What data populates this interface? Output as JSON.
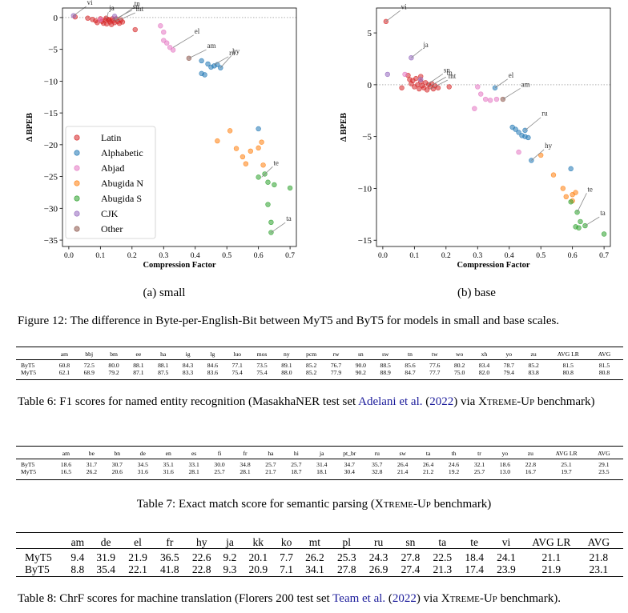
{
  "figure": {
    "legend": [
      {
        "label": "Latin",
        "color": "#d62728"
      },
      {
        "label": "Alphabetic",
        "color": "#1f77b4"
      },
      {
        "label": "Abjad",
        "color": "#e377c2"
      },
      {
        "label": "Abugida N",
        "color": "#ff7f0e"
      },
      {
        "label": "Abugida S",
        "color": "#2ca02c"
      },
      {
        "label": "CJK",
        "color": "#9467bd"
      },
      {
        "label": "Other",
        "color": "#8c564b"
      }
    ],
    "subcaption_a": "(a) small",
    "subcaption_b": "(b) base",
    "caption": "Figure 12: The difference in Byte-per-English-Bit between MyT5 and ByT5 for models in small and base scales."
  },
  "chart_data": [
    {
      "type": "scatter",
      "title": "(a) small",
      "xlabel": "Compression Factor",
      "ylabel": "Δ BPEB",
      "xlim": [
        -0.02,
        0.72
      ],
      "ylim": [
        -36,
        1.5
      ],
      "xticks": [
        "0.0",
        "0.1",
        "0.2",
        "0.3",
        "0.4",
        "0.5",
        "0.6",
        "0.7"
      ],
      "yticks": [
        "0",
        "−5",
        "−10",
        "−15",
        "−20",
        "−25",
        "−30",
        "−35"
      ],
      "xtick_values": [
        0,
        0.1,
        0.2,
        0.3,
        0.4,
        0.5,
        0.6,
        0.7
      ],
      "ytick_values": [
        0,
        -5,
        -10,
        -15,
        -20,
        -25,
        -30,
        -35
      ],
      "series": [
        {
          "name": "Latin",
          "points": [
            [
              0.02,
              0.1
            ],
            [
              0.06,
              -0.1
            ],
            [
              0.075,
              -0.3
            ],
            [
              0.085,
              -0.5
            ],
            [
              0.09,
              -0.8
            ],
            [
              0.1,
              -0.2
            ],
            [
              0.105,
              -0.6
            ],
            [
              0.11,
              -0.9
            ],
            [
              0.115,
              -0.4
            ],
            [
              0.12,
              -1.0
            ],
            [
              0.125,
              -0.3
            ],
            [
              0.13,
              -0.7
            ],
            [
              0.135,
              -1.1
            ],
            [
              0.14,
              -0.5
            ],
            [
              0.145,
              -0.8
            ],
            [
              0.15,
              -0.2
            ],
            [
              0.155,
              -0.6
            ],
            [
              0.16,
              -0.9
            ],
            [
              0.165,
              -0.4
            ],
            [
              0.17,
              -0.7
            ],
            [
              0.21,
              -1.9
            ],
            [
              0.118,
              -0.1
            ],
            [
              0.128,
              -0.4
            ],
            [
              0.138,
              -0.2
            ]
          ]
        },
        {
          "name": "Alphabetic",
          "points": [
            [
              0.42,
              -6.8
            ],
            [
              0.44,
              -7.3
            ],
            [
              0.45,
              -7.8
            ],
            [
              0.46,
              -7.6
            ],
            [
              0.47,
              -7.4
            ],
            [
              0.48,
              -7.9
            ],
            [
              0.42,
              -8.8
            ],
            [
              0.43,
              -9.0
            ],
            [
              0.6,
              -17.5
            ]
          ]
        },
        {
          "name": "Abjad",
          "points": [
            [
              0.29,
              -1.3
            ],
            [
              0.3,
              -2.3
            ],
            [
              0.3,
              -3.6
            ],
            [
              0.31,
              -4.0
            ],
            [
              0.32,
              -4.7
            ],
            [
              0.33,
              -5.1
            ],
            [
              0.1,
              -0.3
            ]
          ]
        },
        {
          "name": "Abugida N",
          "points": [
            [
              0.47,
              -19.4
            ],
            [
              0.51,
              -17.8
            ],
            [
              0.53,
              -20.6
            ],
            [
              0.55,
              -21.9
            ],
            [
              0.56,
              -23.0
            ],
            [
              0.575,
              -21.0
            ],
            [
              0.6,
              -20.5
            ],
            [
              0.61,
              -19.6
            ],
            [
              0.615,
              -23.2
            ]
          ]
        },
        {
          "name": "Abugida S",
          "points": [
            [
              0.6,
              -25.1
            ],
            [
              0.62,
              -24.6
            ],
            [
              0.63,
              -25.9
            ],
            [
              0.65,
              -26.3
            ],
            [
              0.7,
              -26.8
            ],
            [
              0.63,
              -29.4
            ],
            [
              0.64,
              -32.2
            ],
            [
              0.64,
              -33.8
            ]
          ]
        },
        {
          "name": "CJK",
          "points": [
            [
              0.015,
              0.3
            ],
            [
              0.145,
              0.2
            ]
          ]
        },
        {
          "name": "Other",
          "points": [
            [
              0.38,
              -6.4
            ]
          ]
        }
      ],
      "annotations": [
        {
          "text": "vi",
          "x": 0.015,
          "y": 0.3,
          "tx": 0.055,
          "ty": 2.0
        },
        {
          "text": "ja",
          "x": 0.12,
          "y": -0.2,
          "tx": 0.125,
          "ty": 1.1
        },
        {
          "text": "sn",
          "x": 0.14,
          "y": -0.4,
          "tx": 0.2,
          "ty": 1.4
        },
        {
          "text": "tn",
          "x": 0.145,
          "y": -0.5,
          "tx": 0.205,
          "ty": 1.8
        },
        {
          "text": "mt",
          "x": 0.15,
          "y": -0.6,
          "tx": 0.21,
          "ty": 1.0
        },
        {
          "text": "el",
          "x": 0.33,
          "y": -4.7,
          "tx": 0.395,
          "ty": -2.5
        },
        {
          "text": "am",
          "x": 0.38,
          "y": -6.4,
          "tx": 0.435,
          "ty": -4.8
        },
        {
          "text": "ru",
          "x": 0.46,
          "y": -7.4,
          "tx": 0.505,
          "ty": -5.9
        },
        {
          "text": "hy",
          "x": 0.48,
          "y": -7.9,
          "tx": 0.515,
          "ty": -5.7
        },
        {
          "text": "te",
          "x": 0.61,
          "y": -25.1,
          "tx": 0.645,
          "ty": -23.2
        },
        {
          "text": "ta",
          "x": 0.64,
          "y": -33.8,
          "tx": 0.685,
          "ty": -32.0
        }
      ]
    },
    {
      "type": "scatter",
      "title": "(b) base",
      "xlabel": "Compression Factor",
      "ylabel": "Δ BPEB",
      "xlim": [
        -0.02,
        0.72
      ],
      "ylim": [
        -15.6,
        7.4
      ],
      "xticks": [
        "0.0",
        "0.1",
        "0.2",
        "0.3",
        "0.4",
        "0.5",
        "0.6",
        "0.7"
      ],
      "yticks": [
        "5",
        "0",
        "−5",
        "−10",
        "−15"
      ],
      "xtick_values": [
        0,
        0.1,
        0.2,
        0.3,
        0.4,
        0.5,
        0.6,
        0.7
      ],
      "ytick_values": [
        5,
        0,
        -5,
        -10,
        -15
      ],
      "series": [
        {
          "name": "Latin",
          "points": [
            [
              0.01,
              6.1
            ],
            [
              0.06,
              -0.3
            ],
            [
              0.08,
              0.9
            ],
            [
              0.085,
              0.5
            ],
            [
              0.09,
              0.1
            ],
            [
              0.1,
              -0.2
            ],
            [
              0.105,
              0.6
            ],
            [
              0.11,
              0.0
            ],
            [
              0.115,
              -0.4
            ],
            [
              0.12,
              0.3
            ],
            [
              0.125,
              -0.1
            ],
            [
              0.13,
              -0.3
            ],
            [
              0.135,
              0.2
            ],
            [
              0.14,
              -0.5
            ],
            [
              0.145,
              0.0
            ],
            [
              0.15,
              -0.2
            ],
            [
              0.16,
              -0.4
            ],
            [
              0.165,
              -0.1
            ],
            [
              0.175,
              -0.3
            ],
            [
              0.21,
              -0.2
            ],
            [
              0.12,
              0.8
            ],
            [
              0.095,
              0.4
            ],
            [
              0.155,
              0.1
            ]
          ]
        },
        {
          "name": "Alphabetic",
          "points": [
            [
              0.41,
              -4.1
            ],
            [
              0.42,
              -4.3
            ],
            [
              0.43,
              -4.6
            ],
            [
              0.44,
              -4.9
            ],
            [
              0.45,
              -4.4
            ],
            [
              0.45,
              -5.0
            ],
            [
              0.46,
              -5.1
            ],
            [
              0.595,
              -8.1
            ],
            [
              0.47,
              -7.3
            ],
            [
              0.355,
              -0.3
            ]
          ]
        },
        {
          "name": "Abjad",
          "points": [
            [
              0.3,
              -0.2
            ],
            [
              0.31,
              -0.9
            ],
            [
              0.325,
              -1.4
            ],
            [
              0.34,
              -1.5
            ],
            [
              0.36,
              -1.4
            ],
            [
              0.43,
              -6.5
            ],
            [
              0.29,
              -2.3
            ],
            [
              0.07,
              1.0
            ]
          ]
        },
        {
          "name": "Abugida N",
          "points": [
            [
              0.54,
              -8.7
            ],
            [
              0.57,
              -10.0
            ],
            [
              0.58,
              -10.8
            ],
            [
              0.6,
              -10.6
            ],
            [
              0.61,
              -10.4
            ],
            [
              0.6,
              -11.2
            ],
            [
              0.5,
              -6.8
            ]
          ]
        },
        {
          "name": "Abugida S",
          "points": [
            [
              0.615,
              -12.3
            ],
            [
              0.61,
              -13.7
            ],
            [
              0.625,
              -13.2
            ],
            [
              0.64,
              -13.6
            ],
            [
              0.62,
              -13.8
            ],
            [
              0.7,
              -14.4
            ],
            [
              0.595,
              -11.3
            ]
          ]
        },
        {
          "name": "CJK",
          "points": [
            [
              0.015,
              1.0
            ],
            [
              0.09,
              2.6
            ],
            [
              0.12,
              0.5
            ]
          ]
        },
        {
          "name": "Other",
          "points": [
            [
              0.38,
              -1.4
            ]
          ]
        }
      ],
      "annotations": [
        {
          "text": "vi",
          "x": 0.01,
          "y": 6.1,
          "tx": 0.055,
          "ty": 7.3
        },
        {
          "text": "ja",
          "x": 0.09,
          "y": 2.6,
          "tx": 0.125,
          "ty": 3.6
        },
        {
          "text": "sn",
          "x": 0.14,
          "y": 0.0,
          "tx": 0.19,
          "ty": 1.2
        },
        {
          "text": "tn",
          "x": 0.145,
          "y": -0.2,
          "tx": 0.2,
          "ty": 0.9
        },
        {
          "text": "mt",
          "x": 0.15,
          "y": -0.4,
          "tx": 0.205,
          "ty": 0.6
        },
        {
          "text": "el",
          "x": 0.355,
          "y": -0.3,
          "tx": 0.395,
          "ty": 0.7
        },
        {
          "text": "am",
          "x": 0.38,
          "y": -1.4,
          "tx": 0.435,
          "ty": -0.2
        },
        {
          "text": "ru",
          "x": 0.45,
          "y": -4.4,
          "tx": 0.5,
          "ty": -3.0
        },
        {
          "text": "hy",
          "x": 0.47,
          "y": -7.3,
          "tx": 0.51,
          "ty": -6.1
        },
        {
          "text": "te",
          "x": 0.615,
          "y": -12.3,
          "tx": 0.645,
          "ty": -10.3
        },
        {
          "text": "ta",
          "x": 0.64,
          "y": -13.6,
          "tx": 0.685,
          "ty": -12.6
        }
      ]
    }
  ],
  "table6": {
    "header": [
      "",
      "am",
      "bbj",
      "bm",
      "ee",
      "ha",
      "ig",
      "lg",
      "luo",
      "mos",
      "ny",
      "pcm",
      "rw",
      "sn",
      "sw",
      "tn",
      "tw",
      "wo",
      "xh",
      "yo",
      "zu",
      "AVG LR",
      "AVG"
    ],
    "rows": [
      [
        "ByT5",
        "60.8",
        "72.5",
        "80.0",
        "88.1",
        "88.1",
        "84.3",
        "84.6",
        "77.1",
        "73.5",
        "89.1",
        "85.2",
        "76.7",
        "90.0",
        "88.5",
        "85.6",
        "77.6",
        "80.2",
        "83.4",
        "78.7",
        "85.2",
        "81.5",
        "81.5"
      ],
      [
        "MyT5",
        "62.1",
        "68.9",
        "79.2",
        "87.1",
        "87.5",
        "83.3",
        "83.6",
        "75.4",
        "75.4",
        "88.0",
        "85.2",
        "77.9",
        "90.2",
        "88.9",
        "84.7",
        "77.7",
        "75.0",
        "82.0",
        "79.4",
        "83.8",
        "80.8",
        "80.8"
      ]
    ],
    "caption_pre": "Table 6: F1 scores for named entity recognition (MasakhaNER test set ",
    "caption_link": "Adelani et al.",
    "caption_year_open": " (",
    "caption_year": "2022",
    "caption_year_close": ") via ",
    "caption_xtreme": "Xtreme-Up",
    "caption_post": " benchmark)"
  },
  "table7": {
    "header": [
      "",
      "am",
      "be",
      "bn",
      "de",
      "en",
      "es",
      "fi",
      "fr",
      "ha",
      "hi",
      "ja",
      "pt_br",
      "ru",
      "sw",
      "ta",
      "th",
      "tr",
      "yo",
      "zu",
      "AVG LR",
      "AVG"
    ],
    "rows": [
      [
        "ByT5",
        "18.6",
        "31.7",
        "30.7",
        "34.5",
        "35.1",
        "33.1",
        "30.0",
        "34.8",
        "25.7",
        "25.7",
        "31.4",
        "34.7",
        "35.7",
        "26.4",
        "26.4",
        "24.6",
        "32.1",
        "18.6",
        "22.8",
        "25.1",
        "29.1"
      ],
      [
        "MyT5",
        "16.5",
        "26.2",
        "20.6",
        "31.6",
        "31.6",
        "28.1",
        "25.7",
        "28.1",
        "21.7",
        "18.7",
        "18.1",
        "30.4",
        "32.8",
        "21.4",
        "21.2",
        "19.2",
        "25.7",
        "13.0",
        "16.7",
        "19.7",
        "23.5"
      ]
    ],
    "caption_pre": "Table 7: Exact match score for semantic parsing (",
    "caption_xtreme": "Xtreme-Up",
    "caption_post": " benchmark)"
  },
  "table8": {
    "header": [
      "",
      "am",
      "de",
      "el",
      "fr",
      "hy",
      "ja",
      "kk",
      "ko",
      "mt",
      "pl",
      "ru",
      "sn",
      "ta",
      "te",
      "vi",
      "AVG LR",
      "AVG"
    ],
    "rows": [
      [
        "MyT5",
        "9.4",
        "31.9",
        "21.9",
        "36.5",
        "22.6",
        "9.2",
        "20.1",
        "7.7",
        "26.2",
        "25.3",
        "24.3",
        "27.8",
        "22.5",
        "18.4",
        "24.1",
        "21.1",
        "21.8"
      ],
      [
        "ByT5",
        "8.8",
        "35.4",
        "22.1",
        "41.8",
        "22.8",
        "9.3",
        "20.9",
        "7.1",
        "34.1",
        "27.8",
        "26.9",
        "27.4",
        "21.3",
        "17.4",
        "23.9",
        "21.9",
        "23.1"
      ]
    ],
    "caption_pre": "Table 8: ChrF scores for machine translation (Florers 200 test set ",
    "caption_link": "Team et al.",
    "caption_year_open": " (",
    "caption_year": "2022",
    "caption_year_close": ") via ",
    "caption_xtreme": "Xtreme-Up",
    "caption_post": " benchmark)."
  }
}
